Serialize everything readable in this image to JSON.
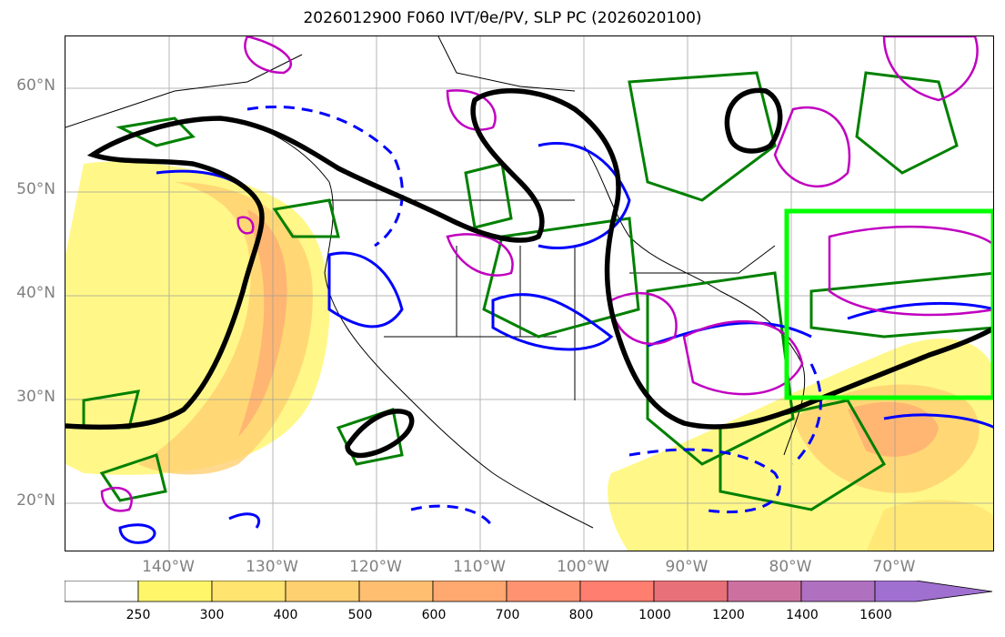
{
  "title": "2026012900 F060 IVT/θe/PV, SLP PC (2026020100)",
  "map": {
    "lat_labels": [
      "60°N",
      "50°N",
      "40°N",
      "30°N",
      "20°N"
    ],
    "lon_labels": [
      "140°W",
      "130°W",
      "120°W",
      "110°W",
      "100°W",
      "90°W",
      "80°W",
      "70°W"
    ],
    "highlight_box_color": "#00ff00",
    "slp_contour_color": "#000000",
    "theta_contour_color": "#0000ff",
    "pv_contour_color": "#008000",
    "ivt_contour_color": "#c000c0"
  },
  "colorbar": {
    "levels": [
      "250",
      "300",
      "400",
      "500",
      "600",
      "700",
      "800",
      "1000",
      "1200",
      "1400",
      "1600"
    ],
    "colors": [
      "#ffffff",
      "#fff66a",
      "#ffe470",
      "#ffd070",
      "#ffbe70",
      "#ffa870",
      "#ff9270",
      "#ff7e70",
      "#e87078",
      "#cc70a0",
      "#b070c0",
      "#a070d0"
    ]
  }
}
